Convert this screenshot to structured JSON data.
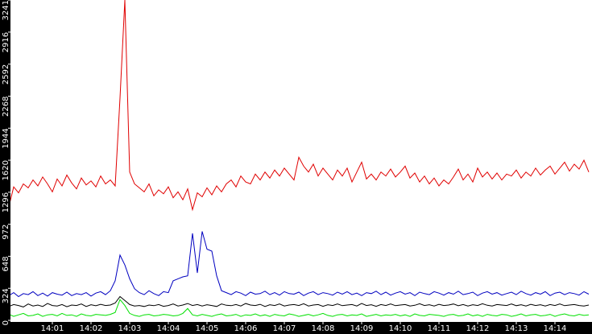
{
  "chart_data": {
    "type": "line",
    "categories": [
      null,
      null,
      null,
      null,
      null,
      null,
      null,
      null,
      null,
      "14:01",
      null,
      null,
      null,
      null,
      null,
      null,
      null,
      "14:02",
      null,
      null,
      null,
      null,
      null,
      null,
      null,
      "14:03",
      null,
      null,
      null,
      null,
      null,
      null,
      null,
      "14:04",
      null,
      null,
      null,
      null,
      null,
      null,
      null,
      "14:05",
      null,
      null,
      null,
      null,
      null,
      null,
      null,
      "14:06",
      null,
      null,
      null,
      null,
      null,
      null,
      null,
      "14:07",
      null,
      null,
      null,
      null,
      null,
      null,
      null,
      "14:08",
      null,
      null,
      null,
      null,
      null,
      null,
      null,
      "14:09",
      null,
      null,
      null,
      null,
      null,
      null,
      null,
      "14:10",
      null,
      null,
      null,
      null,
      null,
      null,
      null,
      "14:11",
      null,
      null,
      null,
      null,
      null,
      null,
      null,
      "14:12",
      null,
      null,
      null,
      null,
      null,
      null,
      null,
      "14:13",
      null,
      null,
      null,
      null,
      null,
      null,
      null,
      "14:14",
      null,
      null,
      null,
      null,
      null,
      null,
      null
    ],
    "series": [
      {
        "color": "#e00000",
        "values": [
          1150,
          1350,
          1290,
          1380,
          1340,
          1420,
          1360,
          1450,
          1380,
          1300,
          1430,
          1360,
          1470,
          1390,
          1330,
          1440,
          1370,
          1410,
          1350,
          1460,
          1380,
          1420,
          1360,
          2250,
          3241,
          1500,
          1380,
          1340,
          1300,
          1380,
          1260,
          1320,
          1280,
          1350,
          1240,
          1300,
          1220,
          1330,
          1120,
          1290,
          1250,
          1340,
          1270,
          1360,
          1300,
          1380,
          1420,
          1350,
          1460,
          1400,
          1380,
          1480,
          1420,
          1500,
          1440,
          1520,
          1460,
          1540,
          1480,
          1420,
          1650,
          1560,
          1500,
          1580,
          1460,
          1540,
          1480,
          1420,
          1520,
          1460,
          1540,
          1400,
          1500,
          1600,
          1430,
          1480,
          1420,
          1500,
          1460,
          1530,
          1450,
          1500,
          1560,
          1440,
          1490,
          1400,
          1460,
          1380,
          1440,
          1360,
          1420,
          1380,
          1450,
          1530,
          1420,
          1480,
          1400,
          1540,
          1450,
          1500,
          1430,
          1490,
          1420,
          1480,
          1460,
          1520,
          1440,
          1500,
          1460,
          1540,
          1470,
          1520,
          1560,
          1480,
          1540,
          1600,
          1510,
          1580,
          1530,
          1620,
          1500
        ]
      },
      {
        "color": "#0000c0",
        "values": [
          250,
          280,
          240,
          270,
          260,
          290,
          250,
          275,
          245,
          280,
          265,
          255,
          285,
          250,
          270,
          260,
          280,
          245,
          275,
          290,
          260,
          300,
          400,
          660,
          560,
          420,
          320,
          280,
          260,
          300,
          270,
          250,
          290,
          280,
          400,
          420,
          440,
          450,
          880,
          480,
          900,
          720,
          700,
          450,
          300,
          280,
          260,
          290,
          275,
          250,
          285,
          265,
          270,
          295,
          260,
          280,
          255,
          290,
          270,
          265,
          285,
          250,
          275,
          290,
          260,
          280,
          270,
          255,
          285,
          265,
          290,
          260,
          275,
          250,
          280,
          270,
          295,
          260,
          285,
          255,
          275,
          290,
          265,
          280,
          250,
          285,
          270,
          260,
          290,
          275,
          255,
          280,
          265,
          295,
          260,
          270,
          285,
          250,
          275,
          290,
          265,
          280,
          255,
          270,
          285,
          260,
          295,
          270,
          255,
          280,
          265,
          290,
          250,
          275,
          285,
          260,
          280,
          270,
          255,
          290,
          265
        ]
      },
      {
        "color": "#000000",
        "values": [
          140,
          160,
          150,
          135,
          165,
          145,
          155,
          140,
          170,
          150,
          145,
          160,
          138,
          155,
          150,
          165,
          140,
          158,
          147,
          162,
          150,
          155,
          175,
          240,
          200,
          160,
          145,
          150,
          140,
          155,
          148,
          160,
          142,
          150,
          165,
          145,
          155,
          170,
          150,
          160,
          145,
          158,
          150,
          140,
          165,
          152,
          148,
          160,
          145,
          170,
          155,
          150,
          162,
          140,
          158,
          150,
          165,
          145,
          155,
          160,
          150,
          168,
          145,
          155,
          160,
          142,
          158,
          150,
          165,
          148,
          155,
          160,
          145,
          170,
          150,
          158,
          142,
          160,
          150,
          165,
          148,
          155,
          160,
          145,
          152,
          168,
          150,
          158,
          145,
          162,
          150,
          155,
          165,
          148,
          160,
          145,
          158,
          150,
          168,
          152,
          145,
          160,
          155,
          150,
          165,
          148,
          158,
          145,
          162,
          150,
          158,
          145,
          160,
          150,
          165,
          148,
          155,
          160,
          150,
          145,
          155
        ]
      },
      {
        "color": "#00e000",
        "values": [
          60,
          40,
          55,
          70,
          45,
          50,
          65,
          40,
          55,
          60,
          45,
          70,
          50,
          55,
          40,
          65,
          50,
          45,
          60,
          55,
          50,
          60,
          80,
          210,
          150,
          70,
          50,
          40,
          55,
          60,
          45,
          50,
          60,
          55,
          45,
          50,
          70,
          120,
          55,
          45,
          60,
          50,
          40,
          55,
          65,
          45,
          50,
          60,
          40,
          55,
          50,
          65,
          45,
          55,
          40,
          60,
          50,
          45,
          65,
          55,
          40,
          50,
          60,
          45,
          55,
          70,
          50,
          40,
          55,
          60,
          45,
          55,
          50,
          65,
          40,
          50,
          60,
          45,
          55,
          50,
          60,
          45,
          55,
          40,
          65,
          50,
          45,
          60,
          55,
          50,
          40,
          55,
          60,
          45,
          50,
          65,
          45,
          55,
          40,
          60,
          50,
          45,
          60,
          55,
          40,
          50,
          65,
          45,
          55,
          60,
          45,
          50,
          60,
          40,
          55,
          65,
          50,
          45,
          60,
          50,
          55
        ]
      }
    ],
    "ylim": [
      0,
      3241
    ],
    "yticks": [
      0,
      324,
      648,
      972,
      1296,
      1620,
      1944,
      2268,
      2592,
      2916,
      3241
    ]
  }
}
